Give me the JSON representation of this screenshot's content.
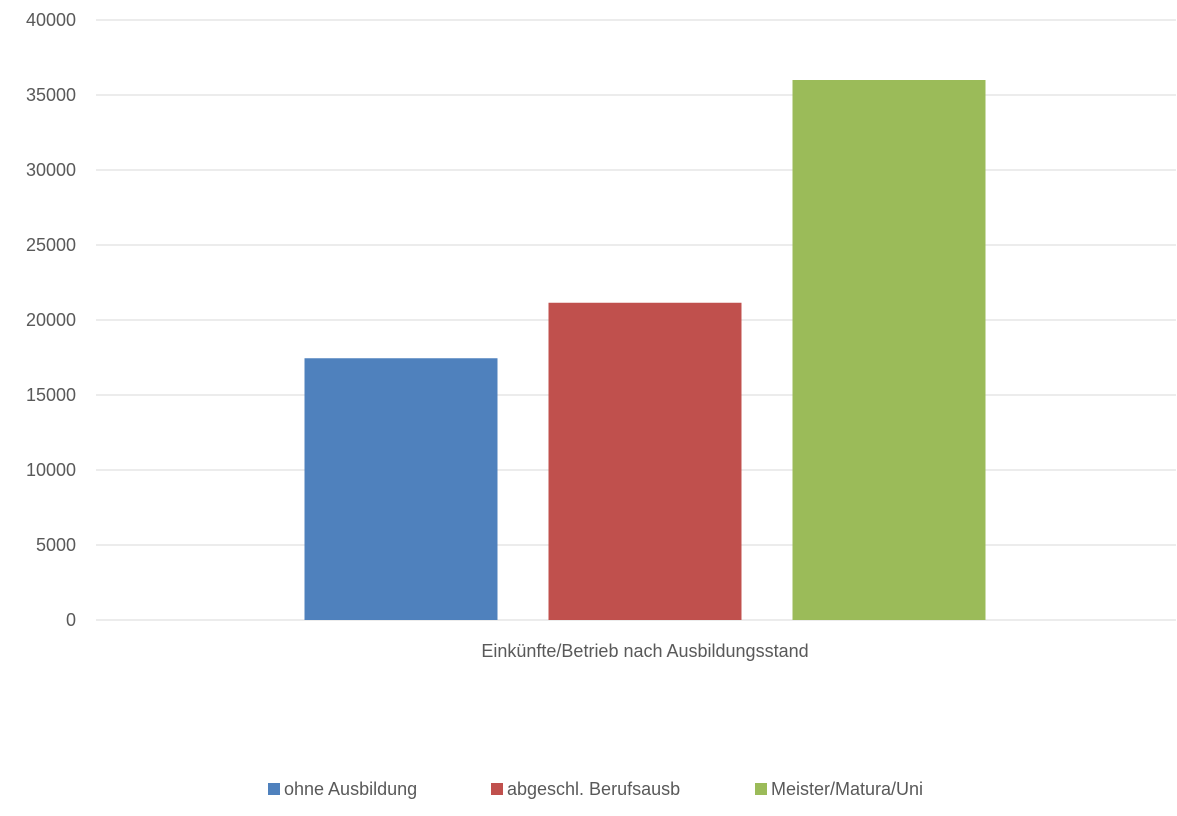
{
  "chart_data": {
    "type": "bar",
    "categories": [
      "Einkünfte/Betrieb nach Ausbildungsstand"
    ],
    "series": [
      {
        "name": "ohne Ausbildung",
        "values": [
          17450
        ],
        "color": "#4f81bd"
      },
      {
        "name": "abgeschl. Berufsausb",
        "values": [
          21150
        ],
        "color": "#c0504d"
      },
      {
        "name": "Meister/Matura/Uni",
        "values": [
          36000
        ],
        "color": "#9bbb59"
      }
    ],
    "title": "",
    "xlabel": "",
    "ylabel": "",
    "ylim": [
      0,
      40000
    ],
    "yticks": [
      "0",
      "5000",
      "10000",
      "15000",
      "20000",
      "25000",
      "30000",
      "35000",
      "40000"
    ],
    "grid": true,
    "legend_position": "bottom"
  }
}
